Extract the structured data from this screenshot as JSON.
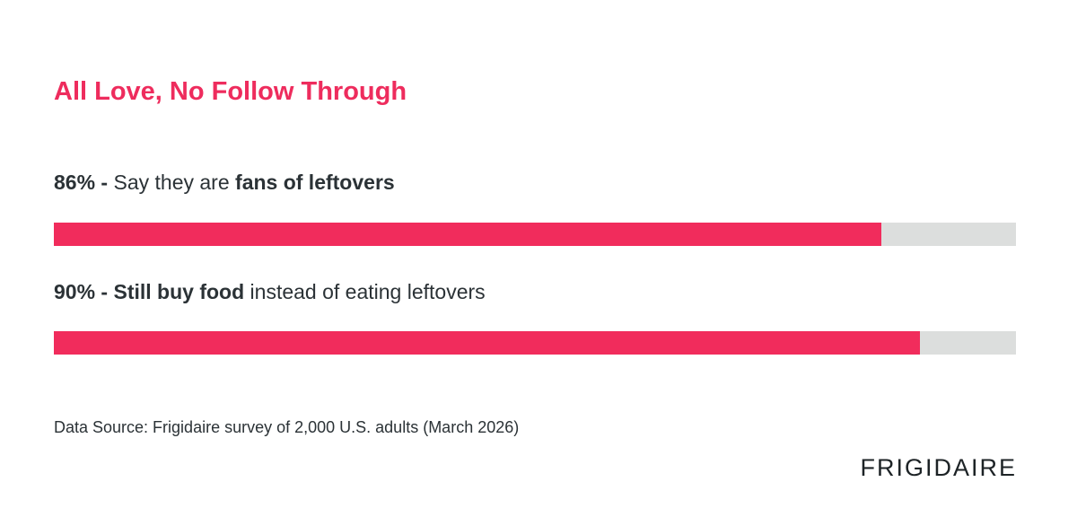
{
  "title": "All Love, No Follow Through",
  "chart_data": {
    "type": "bar",
    "orientation": "horizontal",
    "xlim": [
      0,
      100
    ],
    "bars": [
      {
        "value": 86,
        "value_label": "86%",
        "separator": " - ",
        "text_plain_before": "Say they are ",
        "text_bold": "fans of leftovers",
        "text_plain_after": ""
      },
      {
        "value": 90,
        "value_label": "90%",
        "separator": " - ",
        "text_plain_before": "",
        "text_bold": "Still buy food",
        "text_plain_after": " instead of eating leftovers"
      }
    ]
  },
  "source": "Data Source: Frigidaire survey of 2,000 U.S. adults (March 2026)",
  "logo": {
    "text": "FRIGIDAIRE",
    "accent_color": "#f12c5c"
  },
  "colors": {
    "accent": "#f12c5c",
    "title": "#ee2c5d",
    "track": "#dcdedd",
    "text": "#2b3236"
  }
}
